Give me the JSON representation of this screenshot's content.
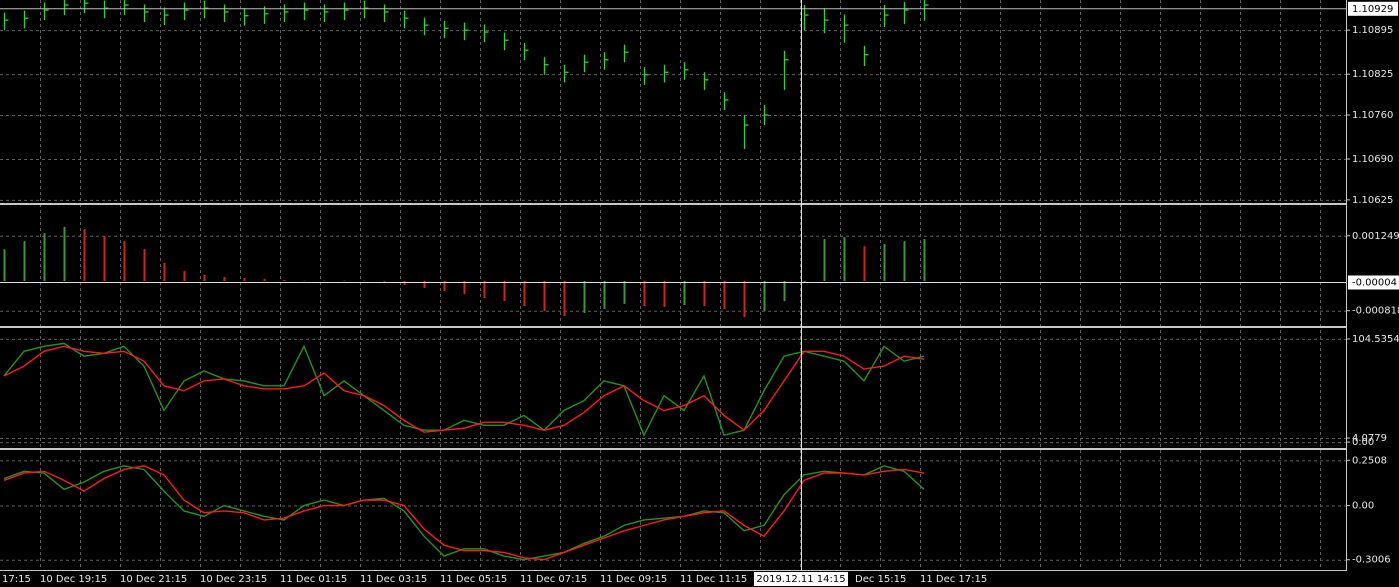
{
  "time_axis": {
    "labels": [
      "17:15",
      "10 Dec 19:15",
      "10 Dec 21:15",
      "10 Dec 23:15",
      "11 Dec 01:15",
      "11 Dec 03:15",
      "11 Dec 05:15",
      "11 Dec 07:15",
      "11 Dec 09:15",
      "11 Dec 11:15",
      "Dec 15:15",
      "11 Dec 17:15"
    ],
    "crosshair_label": "2019.12.11 14:15"
  },
  "chart_data": [
    {
      "type": "ohlc",
      "color": "#32d232",
      "high": [
        1.10923,
        1.10926,
        1.10939,
        1.10947,
        1.1095,
        1.10942,
        1.10947,
        1.10936,
        1.10931,
        1.10939,
        1.10942,
        1.10936,
        1.1093,
        1.10933,
        1.10936,
        1.10939,
        1.10936,
        1.10939,
        1.10942,
        1.10936,
        1.10926,
        1.10915,
        1.1091,
        1.10907,
        1.10904,
        1.10891,
        1.10875,
        1.10852,
        1.1084,
        1.10856,
        1.1086,
        1.10872,
        1.10836,
        1.1084,
        1.10844,
        1.10828,
        1.10796,
        1.1076,
        1.10776,
        1.10862,
        1.10935,
        1.1093,
        1.1092,
        1.1087,
        1.10935,
        1.1094,
        1.10945
      ],
      "low": [
        1.10895,
        1.10898,
        1.10911,
        1.10919,
        1.10922,
        1.10914,
        1.10919,
        1.10908,
        1.10903,
        1.10911,
        1.10914,
        1.10908,
        1.10902,
        1.10905,
        1.10908,
        1.10911,
        1.10908,
        1.10911,
        1.10914,
        1.10908,
        1.10898,
        1.10887,
        1.10882,
        1.10879,
        1.10876,
        1.10863,
        1.10847,
        1.10824,
        1.10812,
        1.10828,
        1.10832,
        1.10844,
        1.10808,
        1.10812,
        1.10816,
        1.108,
        1.10768,
        1.10706,
        1.10744,
        1.108,
        1.10895,
        1.1089,
        1.10875,
        1.10838,
        1.109,
        1.10905,
        1.1091
      ],
      "close": [
        1.10911,
        1.10914,
        1.10927,
        1.10935,
        1.10938,
        1.1093,
        1.10935,
        1.10924,
        1.10919,
        1.10927,
        1.1093,
        1.10924,
        1.10918,
        1.10921,
        1.10924,
        1.10927,
        1.10924,
        1.10927,
        1.1093,
        1.10924,
        1.10914,
        1.10903,
        1.10898,
        1.10895,
        1.10892,
        1.10879,
        1.10863,
        1.1084,
        1.10828,
        1.10844,
        1.10848,
        1.1086,
        1.10824,
        1.10828,
        1.10832,
        1.10816,
        1.10784,
        1.10744,
        1.1076,
        1.10848,
        1.10919,
        1.10911,
        1.10903,
        1.10856,
        1.10919,
        1.10927,
        1.10935
      ],
      "ylim": [
        1.1062,
        1.10943
      ],
      "yticks": [
        1.10895,
        1.10825,
        {
          "value": 1.1076,
          "label": "1.10760"
        },
        {
          "value": 1.1069,
          "label": "1.10690"
        },
        1.10625
      ],
      "current_price": 1.10929,
      "grid": true
    },
    {
      "type": "histogram",
      "color_up": "#3c963c",
      "color_down": "#d0261e",
      "values": [
        0.00088,
        0.0011,
        0.00132,
        0.00149,
        0.00143,
        0.00124,
        0.0011,
        0.00088,
        0.0005,
        0.00028,
        0.00017,
        0.00011,
        8e-05,
        6e-05,
        3e-05,
        1e-05,
        1e-05,
        1e-05,
        1e-05,
        -2e-05,
        -0.00011,
        -0.00019,
        -0.00028,
        -0.00036,
        -0.00047,
        -0.00055,
        -0.00069,
        -0.00083,
        -0.00096,
        -0.00088,
        -0.00077,
        -0.00063,
        -0.00069,
        -0.00072,
        -0.00066,
        -0.00069,
        -0.00077,
        -0.00099,
        -0.00083,
        -0.00055,
        -6e-05,
        0.00116,
        0.00121,
        0.00096,
        0.00102,
        0.0011,
        0.00116
      ],
      "ylim": [
        -0.00124,
        0.00207
      ],
      "yticks": [
        0.001249,
        -0.000818
      ],
      "current_value": -4e-05,
      "grid": true
    },
    {
      "type": "line",
      "series": [
        {
          "color": "#1e961e",
          "values": [
            67,
            92,
            97,
            100,
            87,
            90,
            97,
            77,
            32,
            62,
            72,
            64,
            62,
            57,
            57,
            97,
            47,
            62,
            47,
            32,
            17,
            12,
            12,
            22,
            17,
            17,
            27,
            12,
            32,
            42,
            62,
            57,
            7,
            47,
            32,
            67,
            7,
            12,
            52,
            87,
            92,
            87,
            82,
            62,
            97,
            82,
            87
          ]
        },
        {
          "color": "#ff1a1a",
          "values": [
            67,
            77,
            92,
            97,
            92,
            90,
            92,
            82,
            57,
            52,
            62,
            64,
            57,
            54,
            54,
            57,
            70,
            52,
            47,
            37,
            22,
            10,
            12,
            14,
            20,
            20,
            17,
            12,
            17,
            30,
            47,
            57,
            42,
            32,
            37,
            47,
            27,
            12,
            32,
            62,
            92,
            92,
            87,
            74,
            77,
            87,
            84
          ]
        }
      ],
      "ylim": [
        -5,
        114.6
      ],
      "yticks": [
        104.5354,
        4.0779,
        {
          "value": 0,
          "label": "0.00"
        }
      ],
      "grid": true
    },
    {
      "type": "line",
      "series": [
        {
          "color": "#1e961e",
          "values": [
            0.15,
            0.19,
            0.18,
            0.09,
            0.13,
            0.19,
            0.22,
            0.2,
            0.08,
            -0.03,
            -0.06,
            0,
            -0.03,
            -0.06,
            -0.08,
            0,
            0.03,
            0,
            0.03,
            0.04,
            -0.03,
            -0.17,
            -0.28,
            -0.24,
            -0.24,
            -0.28,
            -0.3,
            -0.28,
            -0.26,
            -0.21,
            -0.17,
            -0.11,
            -0.08,
            -0.07,
            -0.06,
            -0.03,
            -0.04,
            -0.14,
            -0.11,
            0.06,
            0.17,
            0.19,
            0.18,
            0.17,
            0.22,
            0.19,
            0.09
          ]
        },
        {
          "color": "#ff1a1a",
          "values": [
            0.14,
            0.18,
            0.19,
            0.14,
            0.08,
            0.15,
            0.2,
            0.22,
            0.17,
            0.03,
            -0.04,
            -0.03,
            -0.04,
            -0.08,
            -0.07,
            -0.03,
            0,
            0,
            0.03,
            0.03,
            0,
            -0.13,
            -0.22,
            -0.25,
            -0.25,
            -0.26,
            -0.29,
            -0.3,
            -0.26,
            -0.22,
            -0.18,
            -0.14,
            -0.11,
            -0.08,
            -0.06,
            -0.04,
            -0.03,
            -0.11,
            -0.17,
            -0.03,
            0.14,
            0.18,
            0.18,
            0.17,
            0.19,
            0.2,
            0.18
          ]
        }
      ],
      "ylim": [
        -0.3575,
        0.3025
      ],
      "yticks": [
        0.2508,
        {
          "value": 0,
          "label": "0.00"
        },
        -0.3006
      ],
      "grid": true
    }
  ]
}
